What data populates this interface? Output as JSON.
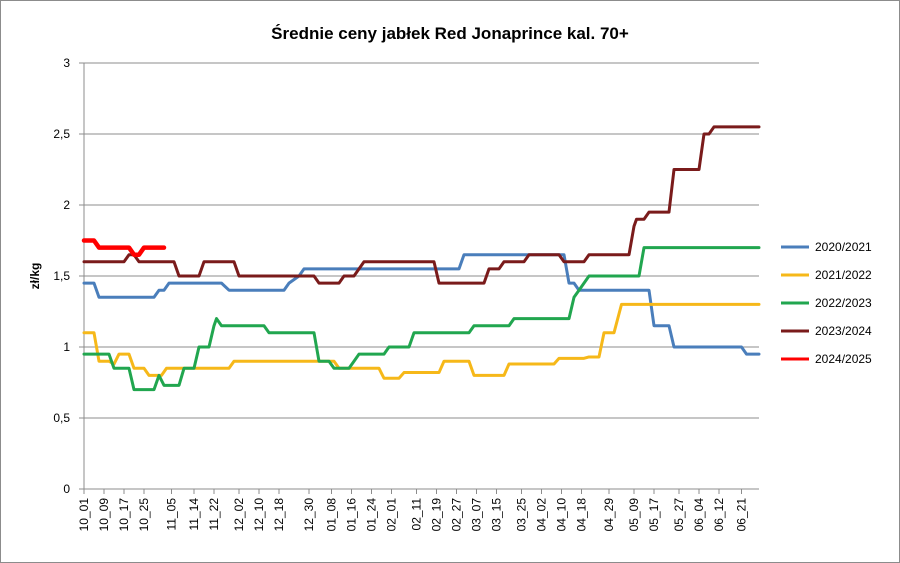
{
  "chart_data": {
    "type": "line",
    "title": "Średnie ceny jabłek Red Jonaprince kal. 70+",
    "ylabel": "zł/kg",
    "xlabel": "",
    "ylim": [
      0,
      3
    ],
    "y_ticks": [
      {
        "value": 0,
        "label": "0"
      },
      {
        "value": 0.5,
        "label": "0,5"
      },
      {
        "value": 1,
        "label": "1"
      },
      {
        "value": 1.5,
        "label": "1,5"
      },
      {
        "value": 2,
        "label": "2"
      },
      {
        "value": 2.5,
        "label": "2,5"
      },
      {
        "value": 3,
        "label": "3"
      }
    ],
    "x_count": 270,
    "x_ticks": [
      {
        "index": 0,
        "label": "10_01"
      },
      {
        "index": 8,
        "label": "10_09"
      },
      {
        "index": 16,
        "label": "10_17"
      },
      {
        "index": 24,
        "label": "10_25"
      },
      {
        "index": 35,
        "label": "11_05"
      },
      {
        "index": 44,
        "label": "11_14"
      },
      {
        "index": 52,
        "label": "11_22"
      },
      {
        "index": 62,
        "label": "12_02"
      },
      {
        "index": 70,
        "label": "12_10"
      },
      {
        "index": 78,
        "label": "12_18"
      },
      {
        "index": 90,
        "label": "12_30"
      },
      {
        "index": 99,
        "label": "01_08"
      },
      {
        "index": 107,
        "label": "01_16"
      },
      {
        "index": 115,
        "label": "01_24"
      },
      {
        "index": 123,
        "label": "02_01"
      },
      {
        "index": 133,
        "label": "02_11"
      },
      {
        "index": 141,
        "label": "02_19"
      },
      {
        "index": 149,
        "label": "02_27"
      },
      {
        "index": 157,
        "label": "03_07"
      },
      {
        "index": 165,
        "label": "03_15"
      },
      {
        "index": 175,
        "label": "03_25"
      },
      {
        "index": 183,
        "label": "04_02"
      },
      {
        "index": 191,
        "label": "04_10"
      },
      {
        "index": 199,
        "label": "04_18"
      },
      {
        "index": 210,
        "label": "04_29"
      },
      {
        "index": 220,
        "label": "05_09"
      },
      {
        "index": 228,
        "label": "05_17"
      },
      {
        "index": 238,
        "label": "05_27"
      },
      {
        "index": 246,
        "label": "06_04"
      },
      {
        "index": 254,
        "label": "06_12"
      },
      {
        "index": 263,
        "label": "06_21"
      }
    ],
    "gridlines": "horizontal",
    "legend_position": "right",
    "series": [
      {
        "name": "2020/2021",
        "color": "#4a7ebb",
        "points": [
          [
            0,
            1.45
          ],
          [
            4,
            1.45
          ],
          [
            6,
            1.35
          ],
          [
            28,
            1.35
          ],
          [
            30,
            1.4
          ],
          [
            32,
            1.4
          ],
          [
            34,
            1.45
          ],
          [
            55,
            1.45
          ],
          [
            58,
            1.4
          ],
          [
            80,
            1.4
          ],
          [
            82,
            1.45
          ],
          [
            86,
            1.5
          ],
          [
            88,
            1.55
          ],
          [
            150,
            1.55
          ],
          [
            152,
            1.65
          ],
          [
            192,
            1.65
          ],
          [
            194,
            1.45
          ],
          [
            196,
            1.45
          ],
          [
            198,
            1.4
          ],
          [
            226,
            1.4
          ],
          [
            228,
            1.15
          ],
          [
            234,
            1.15
          ],
          [
            236,
            1.0
          ],
          [
            263,
            1.0
          ],
          [
            265,
            0.95
          ],
          [
            270,
            0.95
          ]
        ]
      },
      {
        "name": "2021/2022",
        "color": "#f6b819",
        "points": [
          [
            0,
            1.1
          ],
          [
            4,
            1.1
          ],
          [
            6,
            0.9
          ],
          [
            10,
            0.9
          ],
          [
            12,
            0.88
          ],
          [
            14,
            0.95
          ],
          [
            18,
            0.95
          ],
          [
            20,
            0.85
          ],
          [
            24,
            0.85
          ],
          [
            26,
            0.8
          ],
          [
            31,
            0.8
          ],
          [
            33,
            0.85
          ],
          [
            58,
            0.85
          ],
          [
            60,
            0.9
          ],
          [
            100,
            0.9
          ],
          [
            102,
            0.85
          ],
          [
            118,
            0.85
          ],
          [
            120,
            0.78
          ],
          [
            126,
            0.78
          ],
          [
            128,
            0.82
          ],
          [
            142,
            0.82
          ],
          [
            144,
            0.9
          ],
          [
            154,
            0.9
          ],
          [
            156,
            0.8
          ],
          [
            168,
            0.8
          ],
          [
            170,
            0.88
          ],
          [
            188,
            0.88
          ],
          [
            190,
            0.92
          ],
          [
            200,
            0.92
          ],
          [
            202,
            0.93
          ],
          [
            206,
            0.93
          ],
          [
            208,
            1.1
          ],
          [
            212,
            1.1
          ],
          [
            215,
            1.3
          ],
          [
            270,
            1.3
          ]
        ]
      },
      {
        "name": "2022/2023",
        "color": "#21a64f",
        "points": [
          [
            0,
            0.95
          ],
          [
            10,
            0.95
          ],
          [
            12,
            0.85
          ],
          [
            18,
            0.85
          ],
          [
            20,
            0.7
          ],
          [
            28,
            0.7
          ],
          [
            30,
            0.8
          ],
          [
            32,
            0.73
          ],
          [
            38,
            0.73
          ],
          [
            40,
            0.85
          ],
          [
            44,
            0.85
          ],
          [
            46,
            1.0
          ],
          [
            50,
            1.0
          ],
          [
            52,
            1.15
          ],
          [
            53,
            1.2
          ],
          [
            55,
            1.15
          ],
          [
            72,
            1.15
          ],
          [
            74,
            1.1
          ],
          [
            88,
            1.1
          ],
          [
            92,
            1.1
          ],
          [
            94,
            0.9
          ],
          [
            98,
            0.9
          ],
          [
            100,
            0.85
          ],
          [
            106,
            0.85
          ],
          [
            108,
            0.9
          ],
          [
            110,
            0.95
          ],
          [
            120,
            0.95
          ],
          [
            122,
            1.0
          ],
          [
            130,
            1.0
          ],
          [
            132,
            1.1
          ],
          [
            154,
            1.1
          ],
          [
            156,
            1.15
          ],
          [
            170,
            1.15
          ],
          [
            172,
            1.2
          ],
          [
            194,
            1.2
          ],
          [
            196,
            1.35
          ],
          [
            198,
            1.4
          ],
          [
            200,
            1.45
          ],
          [
            202,
            1.5
          ],
          [
            222,
            1.5
          ],
          [
            224,
            1.7
          ],
          [
            270,
            1.7
          ]
        ]
      },
      {
        "name": "2023/2024",
        "color": "#7a1b1b",
        "points": [
          [
            0,
            1.6
          ],
          [
            16,
            1.6
          ],
          [
            18,
            1.65
          ],
          [
            20,
            1.65
          ],
          [
            22,
            1.6
          ],
          [
            36,
            1.6
          ],
          [
            38,
            1.5
          ],
          [
            46,
            1.5
          ],
          [
            48,
            1.6
          ],
          [
            60,
            1.6
          ],
          [
            62,
            1.5
          ],
          [
            92,
            1.5
          ],
          [
            94,
            1.45
          ],
          [
            102,
            1.45
          ],
          [
            104,
            1.5
          ],
          [
            108,
            1.5
          ],
          [
            110,
            1.55
          ],
          [
            112,
            1.6
          ],
          [
            140,
            1.6
          ],
          [
            142,
            1.45
          ],
          [
            160,
            1.45
          ],
          [
            162,
            1.55
          ],
          [
            166,
            1.55
          ],
          [
            168,
            1.6
          ],
          [
            176,
            1.6
          ],
          [
            178,
            1.65
          ],
          [
            190,
            1.65
          ],
          [
            192,
            1.6
          ],
          [
            200,
            1.6
          ],
          [
            202,
            1.65
          ],
          [
            218,
            1.65
          ],
          [
            220,
            1.85
          ],
          [
            221,
            1.9
          ],
          [
            224,
            1.9
          ],
          [
            226,
            1.95
          ],
          [
            234,
            1.95
          ],
          [
            236,
            2.25
          ],
          [
            246,
            2.25
          ],
          [
            248,
            2.5
          ],
          [
            250,
            2.5
          ],
          [
            252,
            2.55
          ],
          [
            270,
            2.55
          ]
        ]
      },
      {
        "name": "2024/2025",
        "color": "#ff0000",
        "points": [
          [
            0,
            1.75
          ],
          [
            4,
            1.75
          ],
          [
            6,
            1.7
          ],
          [
            18,
            1.7
          ],
          [
            20,
            1.65
          ],
          [
            22,
            1.65
          ],
          [
            24,
            1.7
          ],
          [
            32,
            1.7
          ]
        ]
      }
    ]
  }
}
